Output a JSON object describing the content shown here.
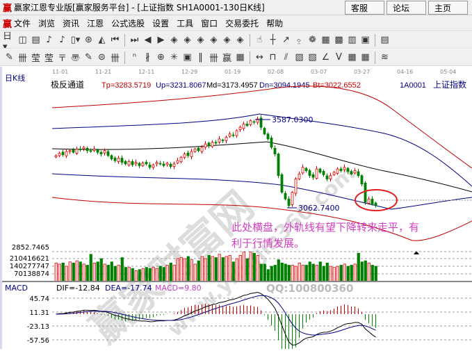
{
  "window": {
    "logo": "赢",
    "title": "赢家江恩专业版[赢家服务平台] - [上证指数  SH1A0001-130日K线]",
    "buttons": [
      "客服",
      "论坛",
      "主页"
    ]
  },
  "menu": {
    "logo": "赢",
    "items": [
      "文件",
      "浏览",
      "资讯",
      "江恩",
      "公式选股",
      "设置",
      "工具",
      "窗口",
      "交易委托",
      "帮助"
    ]
  },
  "toolbar1": [
    "day-period-dropdown",
    "window-icon",
    "doc-icon",
    "chart-3-icon",
    "chart-9-icon",
    "candle-dropdown",
    "fan-icon",
    "flag-icon",
    "first-icon",
    "last-icon",
    "prev-icon",
    "next-icon",
    "diamond-left-icon",
    "diamond-right-icon",
    "diamond-expand-icon",
    "diamond-shrink-icon",
    "diamond-cross-icon",
    "diamond-all-icon",
    "hand-icon",
    "crosshair-icon",
    "line-draw-icon",
    "gann-icon",
    "cycle-icon",
    "calendar-icon",
    "calculator-icon",
    "notes-icon",
    "save-icon",
    "more-icon"
  ],
  "toolbar1_glyphs": [
    "日▾",
    "◫",
    "▤",
    "♪",
    "♪",
    "▯▾",
    "⊛",
    "◭",
    "⏮",
    "⏭",
    "◀",
    "▶",
    "◈",
    "◈",
    "◈",
    "◈",
    "◈",
    "◈",
    "☝",
    "┼",
    "↗",
    "⍚",
    "❁",
    "▦",
    "▩",
    "▥",
    "▣",
    "▤"
  ],
  "toolbar2": [
    "pen-icon",
    "grid-icon",
    "gann-square-icon",
    "gann-square2-icon",
    "fib-icon",
    "spiral-icon",
    "pen2-icon",
    "circle-icon",
    "cycle-lines-icon",
    "n2-icon",
    "angle-icon",
    "target-icon",
    "star-icon",
    "box-icon",
    "lines-icon",
    "gann-time-icon",
    "gann-price-icon",
    "numbers-icon",
    "width-icon",
    "rect-icon",
    "fan-lines-icon",
    "box-fan-icon",
    "box-fan2-icon",
    "angle2-icon",
    "v-icon",
    "grid2-icon",
    "grid3-icon",
    "parallel-icon"
  ],
  "toolbar2_glyphs": [
    "✎",
    "卌",
    "莹",
    "莹",
    "〒",
    "〠",
    "✎",
    "⊜",
    "卌",
    "ⁿ",
    "∦",
    "⊕",
    "✳",
    "▣",
    "‖",
    "卌",
    "赢",
    "▦",
    "↔",
    "⊓",
    "⫽",
    "▨",
    "▧",
    "∠",
    "V",
    "▦",
    "▦",
    "≋"
  ],
  "chart": {
    "period_label": "日K线",
    "dates": [
      "11-01",
      "11-21",
      "12-11",
      "12-29",
      "01-19",
      "02-08",
      "03-07",
      "03-27",
      "04-16",
      "05-04"
    ],
    "indicator": "极反通道",
    "tp": "Tp=3283.5719",
    "up": "Up=3231.8067",
    "md": "Md=3173.4957",
    "dn": "Dn=3094.1945",
    "bt": "Bt=3022.6552",
    "code": "1A0001",
    "name": "上证指数",
    "high_label": "3587.0300",
    "low_label": "3062.7400",
    "annotation": [
      "此处横盘，外轨线有望下降转来走平，有",
      "利于行情发展。"
    ],
    "colors": {
      "annotation": "#d040c0",
      "up": "#e00000",
      "down": "#008000",
      "upper_band": "#c00000",
      "mid_band": "#000000",
      "inner_band": "#000080"
    },
    "volume_axis": [
      "2852.7465",
      "210416621",
      "140277747",
      "70138874"
    ],
    "macd": {
      "label": "MACD",
      "dif": "DIF=-12.84",
      "dea": "DEA=-17.74",
      "macd": "MACD=9.80",
      "axis": [
        "45.74",
        "11.31",
        "-23.13",
        "-57.56"
      ]
    },
    "qq": "QQ:100800360",
    "watermark": [
      "赢家财富网",
      "www.yingjia360.com"
    ]
  },
  "chart_data": {
    "type": "candlestick",
    "closes": [
      3370,
      3385,
      3375,
      3395,
      3400,
      3390,
      3410,
      3405,
      3420,
      3400,
      3395,
      3410,
      3390,
      3380,
      3400,
      3370,
      3350,
      3340,
      3355,
      3330,
      3320,
      3335,
      3315,
      3330,
      3310,
      3325,
      3320,
      3300,
      3315,
      3330,
      3320,
      3310,
      3325,
      3305,
      3320,
      3340,
      3360,
      3380,
      3370,
      3395,
      3410,
      3400,
      3420,
      3440,
      3430,
      3450,
      3445,
      3470,
      3460,
      3480,
      3500,
      3490,
      3520,
      3540,
      3560,
      3550,
      3580,
      3570,
      3590,
      3540,
      3500,
      3470,
      3420,
      3380,
      3250,
      3150,
      3110,
      3070,
      3150,
      3230,
      3260,
      3300,
      3280,
      3250,
      3240,
      3290,
      3270,
      3255,
      3230,
      3250,
      3270,
      3290,
      3280,
      3300,
      3275,
      3260,
      3280,
      3250,
      3200,
      3090,
      3110,
      3080,
      3070
    ],
    "volumes": [
      170000000.0,
      160000000.0,
      170000000.0,
      140000000.0,
      180000000.0,
      170000000.0,
      190000000.0,
      180000000.0,
      160000000.0,
      150000000.0,
      250000000.0,
      170000000.0,
      180000000.0,
      210000000.0,
      160000000.0,
      150000000.0,
      180000000.0,
      140000000.0,
      150000000.0,
      220000000.0,
      130000000.0,
      130000000.0,
      120000000.0,
      100000000.0,
      110000000.0,
      120000000.0,
      130000000.0,
      120000000.0,
      130000000.0,
      120000000.0,
      140000000.0,
      130000000.0,
      150000000.0,
      170000000.0,
      150000000.0,
      210000000.0,
      220000000.0,
      210000000.0,
      230000000.0,
      200000000.0,
      160000000.0,
      190000000.0,
      230000000.0,
      210000000.0,
      240000000.0,
      230000000.0,
      220000000.0,
      250000000.0,
      220000000.0,
      230000000.0,
      240000000.0,
      180000000.0,
      210000000.0,
      240000000.0,
      270000000.0,
      210000000.0,
      270000000.0,
      260000000.0,
      240000000.0,
      160000000.0,
      160000000.0,
      110000000.0,
      140000000.0,
      150000000.0,
      200000000.0,
      170000000.0,
      160000000.0,
      150000000.0,
      150000000.0,
      140000000.0,
      170000000.0,
      150000000.0,
      150000000.0,
      180000000.0,
      160000000.0,
      150000000.0,
      180000000.0,
      140000000.0,
      170000000.0,
      140000000.0,
      130000000.0,
      140000000.0,
      150000000.0,
      160000000.0,
      140000000.0,
      150000000.0,
      160000000.0,
      260000000.0,
      180000000.0,
      190000000.0,
      170000000.0,
      150000000.0,
      140000000.0
    ],
    "price_range": [
      2852.7465,
      3770
    ],
    "macd_range": [
      -60,
      50
    ]
  }
}
